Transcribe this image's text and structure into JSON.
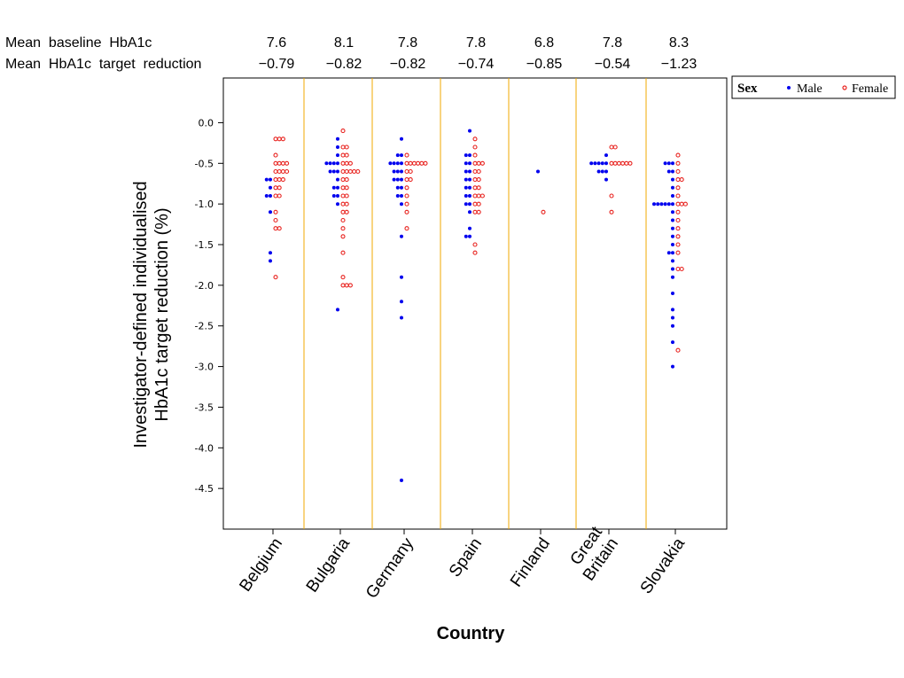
{
  "header": {
    "baseline_label": "Mean  baseline  HbA1c",
    "reduction_label": "Mean  HbA1c  target  reduction"
  },
  "colors": {
    "male": "#0000ee",
    "female": "#e8231f",
    "separator": "#f0a800",
    "frame": "#000000"
  },
  "legend": {
    "title": "Sex",
    "male_label": "Male",
    "female_label": "Female"
  },
  "chart_data": {
    "type": "scatter",
    "title": "",
    "xlabel": "Country",
    "ylabel_line1": "Investigator-defined individualised",
    "ylabel_line2": "HbA1c target reduction (%)",
    "ylim": [
      -5.0,
      0.55
    ],
    "yticks": [
      "0.0",
      "-0.5",
      "-1.0",
      "-1.5",
      "-2.0",
      "-2.5",
      "-3.0",
      "-3.5",
      "-4.0",
      "-4.5"
    ],
    "ytick_values": [
      0.0,
      -0.5,
      -1.0,
      -1.5,
      -2.0,
      -2.5,
      -3.0,
      -3.5,
      -4.0,
      -4.5
    ],
    "countries": [
      {
        "label": "Belgium",
        "baseline": "7.6",
        "reduction": "−0.79",
        "male": [
          -0.7,
          -0.7,
          -0.8,
          -0.9,
          -0.9,
          -1.1,
          -1.6,
          -1.7
        ],
        "female": [
          -0.2,
          -0.2,
          -0.2,
          -0.4,
          -0.5,
          -0.5,
          -0.5,
          -0.5,
          -0.6,
          -0.6,
          -0.6,
          -0.6,
          -0.7,
          -0.7,
          -0.7,
          -0.8,
          -0.8,
          -0.9,
          -0.9,
          -1.1,
          -1.2,
          -1.3,
          -1.3,
          -1.9
        ]
      },
      {
        "label": "Bulgaria",
        "baseline": "8.1",
        "reduction": "−0.82",
        "male": [
          -0.2,
          -0.3,
          -0.4,
          -0.5,
          -0.5,
          -0.5,
          -0.5,
          -0.6,
          -0.6,
          -0.6,
          -0.7,
          -0.8,
          -0.8,
          -0.9,
          -0.9,
          -1.0,
          -2.3
        ],
        "female": [
          -0.1,
          -0.3,
          -0.3,
          -0.4,
          -0.4,
          -0.5,
          -0.5,
          -0.5,
          -0.6,
          -0.6,
          -0.6,
          -0.6,
          -0.6,
          -0.7,
          -0.7,
          -0.8,
          -0.8,
          -0.9,
          -0.9,
          -1.0,
          -1.0,
          -1.1,
          -1.1,
          -1.2,
          -1.3,
          -1.4,
          -1.6,
          -1.9,
          -2.0,
          -2.0,
          -2.0
        ]
      },
      {
        "label": "Germany",
        "baseline": "7.8",
        "reduction": "−0.82",
        "male": [
          -0.2,
          -0.4,
          -0.4,
          -0.5,
          -0.5,
          -0.5,
          -0.5,
          -0.6,
          -0.6,
          -0.6,
          -0.7,
          -0.7,
          -0.7,
          -0.8,
          -0.8,
          -0.9,
          -0.9,
          -1.0,
          -1.4,
          -1.9,
          -2.2,
          -2.4,
          -4.4
        ],
        "female": [
          -0.4,
          -0.5,
          -0.5,
          -0.5,
          -0.5,
          -0.5,
          -0.5,
          -0.6,
          -0.6,
          -0.7,
          -0.7,
          -0.8,
          -0.9,
          -1.0,
          -1.1,
          -1.3
        ]
      },
      {
        "label": "Spain",
        "baseline": "7.8",
        "reduction": "−0.74",
        "male": [
          -0.1,
          -0.4,
          -0.4,
          -0.5,
          -0.5,
          -0.6,
          -0.6,
          -0.7,
          -0.7,
          -0.8,
          -0.8,
          -0.9,
          -0.9,
          -1.0,
          -1.0,
          -1.1,
          -1.3,
          -1.4,
          -1.4
        ],
        "female": [
          -0.2,
          -0.3,
          -0.4,
          -0.5,
          -0.5,
          -0.5,
          -0.6,
          -0.6,
          -0.7,
          -0.7,
          -0.8,
          -0.8,
          -0.9,
          -0.9,
          -0.9,
          -1.0,
          -1.0,
          -1.1,
          -1.1,
          -1.5,
          -1.6
        ]
      },
      {
        "label": "Finland",
        "baseline": "6.8",
        "reduction": "−0.85",
        "male": [
          -0.6
        ],
        "female": [
          -1.1
        ]
      },
      {
        "label": "Great Britain",
        "label_lines": [
          "Great",
          "Britain"
        ],
        "baseline": "7.8",
        "reduction": "−0.54",
        "male": [
          -0.4,
          -0.5,
          -0.5,
          -0.5,
          -0.5,
          -0.5,
          -0.6,
          -0.6,
          -0.6,
          -0.7
        ],
        "female": [
          -0.3,
          -0.3,
          -0.5,
          -0.5,
          -0.5,
          -0.5,
          -0.5,
          -0.5,
          -0.9,
          -1.1
        ]
      },
      {
        "label": "Slovakia",
        "baseline": "8.3",
        "reduction": "−1.23",
        "male": [
          -0.5,
          -0.5,
          -0.5,
          -0.6,
          -0.6,
          -0.7,
          -0.8,
          -0.9,
          -1.0,
          -1.0,
          -1.0,
          -1.0,
          -1.0,
          -1.0,
          -1.1,
          -1.2,
          -1.3,
          -1.4,
          -1.5,
          -1.6,
          -1.6,
          -1.7,
          -1.8,
          -1.9,
          -2.1,
          -2.3,
          -2.4,
          -2.5,
          -2.7,
          -3.0
        ],
        "female": [
          -0.4,
          -0.5,
          -0.6,
          -0.7,
          -0.7,
          -0.8,
          -0.9,
          -1.0,
          -1.0,
          -1.0,
          -1.1,
          -1.2,
          -1.3,
          -1.4,
          -1.5,
          -1.6,
          -1.8,
          -1.8,
          -2.8
        ]
      }
    ]
  }
}
